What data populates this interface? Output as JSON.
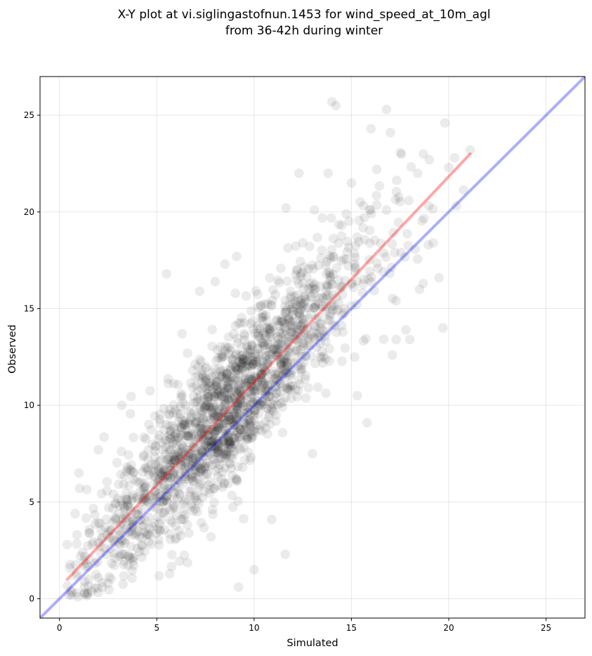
{
  "chart_data": {
    "type": "scatter",
    "title_line1": "X-Y plot at vi.siglingastofnun.1453 for wind_speed_at_10m_agl",
    "title_line2": "from 36-42h during winter",
    "xlabel": "Simulated",
    "ylabel": "Observed",
    "xlim": [
      -1.0,
      27.0
    ],
    "ylim": [
      -1.0,
      27.0
    ],
    "xticks": [
      0,
      5,
      10,
      15,
      20,
      25
    ],
    "yticks": [
      0,
      5,
      10,
      15,
      20,
      25
    ],
    "xtick_labels": [
      "0",
      "5",
      "10",
      "15",
      "20",
      "25"
    ],
    "ytick_labels": [
      "0",
      "5",
      "10",
      "15",
      "20",
      "25"
    ],
    "grid": true,
    "point_color": "#000000",
    "point_alpha": 0.08,
    "identity_line": {
      "color": "#0000ff",
      "x": [
        -1.0,
        27.0
      ],
      "y": [
        -1.0,
        27.0
      ]
    },
    "fit_line": {
      "color": "#ff0000",
      "x": [
        0.4,
        21.1
      ],
      "y": [
        1.0,
        23.0
      ]
    },
    "scatter_model": {
      "n": 1800,
      "x_range": [
        0.4,
        21.2
      ],
      "slope": 1.06,
      "intercept": 0.6,
      "spread": 1.9
    },
    "series": [
      {
        "x": [
          0.4,
          0.6,
          0.8,
          1.0,
          2.2,
          1.5,
          0.9,
          2.0,
          3.2,
          2.5
        ],
        "y": [
          2.8,
          0.2,
          4.4,
          6.5,
          0.6,
          1.0,
          3.3,
          7.7,
          10.0,
          0.8
        ]
      },
      {
        "x": [
          5.5,
          6.3,
          7.2,
          8.0,
          8.5,
          9.1,
          9.2,
          10.0,
          10.5,
          10.9
        ],
        "y": [
          16.8,
          13.7,
          15.9,
          16.4,
          17.3,
          17.7,
          0.6,
          1.5,
          14.6,
          4.1
        ]
      },
      {
        "x": [
          11.6,
          12.3,
          13.0,
          13.1,
          13.8,
          14.0,
          14.2,
          14.5,
          15.0,
          15.3
        ],
        "y": [
          2.3,
          22.0,
          7.5,
          20.1,
          22.0,
          25.7,
          25.5,
          19.3,
          21.5,
          10.5
        ]
      },
      {
        "x": [
          15.8,
          16.0,
          16.3,
          16.8,
          17.0,
          17.1,
          17.3,
          17.8,
          18.0,
          18.4
        ],
        "y": [
          9.1,
          24.3,
          22.2,
          25.3,
          24.1,
          12.6,
          13.4,
          13.9,
          13.4,
          22.0
        ]
      },
      {
        "x": [
          18.5,
          18.7,
          19.0,
          19.2,
          19.5,
          19.7,
          19.8,
          20.0,
          20.3,
          21.1
        ],
        "y": [
          16.0,
          23.0,
          22.7,
          18.4,
          16.6,
          14.0,
          24.6,
          22.3,
          22.8,
          23.2
        ]
      }
    ]
  }
}
